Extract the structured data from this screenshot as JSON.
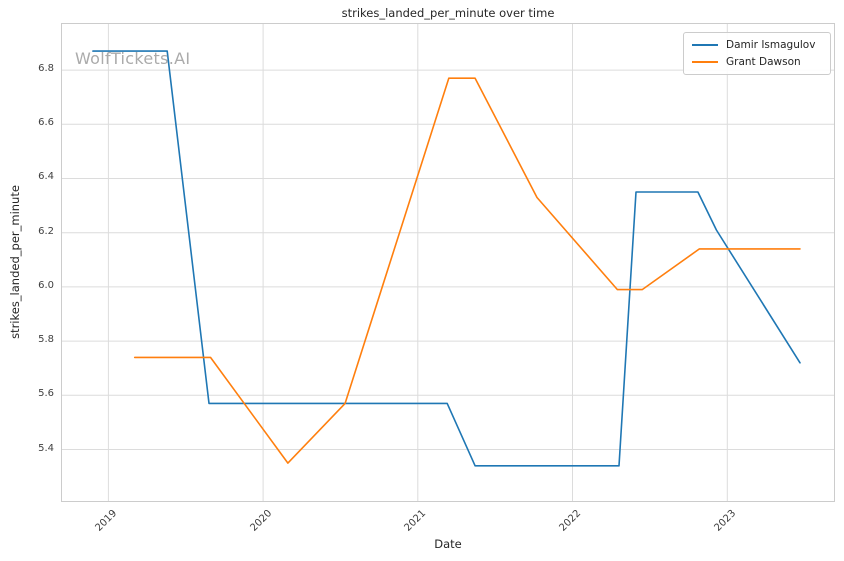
{
  "figure": {
    "background": "#ffffff",
    "watermark": {
      "text": "WolfTickets.AI",
      "color": "#ababab"
    }
  },
  "colors": {
    "grid": "#dcdcdc",
    "frame": "#cccccc",
    "text": "#262626",
    "tick_text": "#404040"
  },
  "chart_data": {
    "type": "line",
    "title": "strikes_landed_per_minute over time",
    "xlabel": "Date",
    "ylabel": "strikes_landed_per_minute",
    "grid": true,
    "legend_position": "upper right",
    "xlim": [
      2018.7,
      2023.69
    ],
    "ylim": [
      5.21,
      6.97
    ],
    "x_ticks": [
      2019,
      2020,
      2021,
      2022,
      2023
    ],
    "x_tick_labels": [
      "2019",
      "2020",
      "2021",
      "2022",
      "2023"
    ],
    "y_ticks": [
      5.4,
      5.6,
      5.8,
      6.0,
      6.2,
      6.4,
      6.6,
      6.8
    ],
    "y_tick_labels": [
      "5.4",
      "5.6",
      "5.8",
      "6.0",
      "6.2",
      "6.4",
      "6.6",
      "6.8"
    ],
    "series": [
      {
        "name": "Damir Ismagulov",
        "color": "#1f77b4",
        "points": [
          [
            2018.9,
            6.87
          ],
          [
            2019.38,
            6.87
          ],
          [
            2019.65,
            5.57
          ],
          [
            2021.19,
            5.57
          ],
          [
            2021.37,
            5.34
          ],
          [
            2022.3,
            5.34
          ],
          [
            2022.41,
            6.35
          ],
          [
            2022.81,
            6.35
          ],
          [
            2022.93,
            6.21
          ],
          [
            2023.47,
            5.72
          ]
        ]
      },
      {
        "name": "Grant Dawson",
        "color": "#ff7f0e",
        "points": [
          [
            2019.17,
            5.74
          ],
          [
            2019.66,
            5.74
          ],
          [
            2020.16,
            5.35
          ],
          [
            2020.53,
            5.57
          ],
          [
            2021.2,
            6.77
          ],
          [
            2021.37,
            6.77
          ],
          [
            2021.77,
            6.33
          ],
          [
            2022.29,
            5.99
          ],
          [
            2022.45,
            5.99
          ],
          [
            2022.82,
            6.14
          ],
          [
            2023.47,
            6.14
          ]
        ]
      }
    ]
  }
}
